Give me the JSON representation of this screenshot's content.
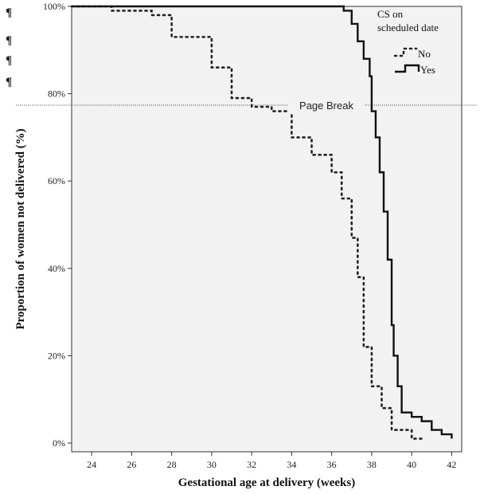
{
  "document": {
    "paragraph_marks": [
      "¶",
      "¶",
      "¶",
      "¶"
    ],
    "page_break_label": "Page Break"
  },
  "chart_data": {
    "type": "line",
    "step": true,
    "title": "",
    "xlabel": "Gestational age at delivery (weeks)",
    "ylabel": "Proportion of women not delivered (%)",
    "xlim": [
      23,
      42.5
    ],
    "ylim": [
      -0.02,
      1.0
    ],
    "x_ticks": [
      24,
      26,
      28,
      30,
      32,
      34,
      36,
      38,
      40,
      42
    ],
    "y_ticks": [
      0,
      0.2,
      0.4,
      0.6,
      0.8,
      1.0
    ],
    "y_tick_labels": [
      "0%",
      "20%",
      "40%",
      "60%",
      "80%",
      "100%"
    ],
    "grid": false,
    "background": "#f2f2f2",
    "legend": {
      "title_lines": [
        "CS on",
        "scheduled date"
      ],
      "placement": "top-right"
    },
    "series": [
      {
        "name": "No",
        "style": "dotted",
        "color": "#222222",
        "x": [
          23,
          25,
          27,
          28,
          30,
          31,
          32,
          33,
          34,
          35,
          36,
          36.5,
          37,
          37.3,
          37.6,
          38,
          38.5,
          39,
          40,
          40.5
        ],
        "y": [
          1.0,
          0.99,
          0.98,
          0.93,
          0.86,
          0.79,
          0.77,
          0.76,
          0.7,
          0.66,
          0.62,
          0.56,
          0.47,
          0.38,
          0.22,
          0.13,
          0.08,
          0.03,
          0.01,
          0.01
        ]
      },
      {
        "name": "Yes",
        "style": "solid",
        "color": "#111111",
        "x": [
          23,
          36.6,
          37,
          37.3,
          37.6,
          37.9,
          38,
          38.2,
          38.4,
          38.6,
          38.8,
          39,
          39.1,
          39.3,
          39.5,
          40,
          40.5,
          41,
          41.5,
          42
        ],
        "y": [
          1.0,
          0.99,
          0.96,
          0.92,
          0.88,
          0.84,
          0.76,
          0.7,
          0.62,
          0.53,
          0.42,
          0.27,
          0.2,
          0.13,
          0.07,
          0.06,
          0.05,
          0.03,
          0.02,
          0.01
        ]
      }
    ]
  }
}
